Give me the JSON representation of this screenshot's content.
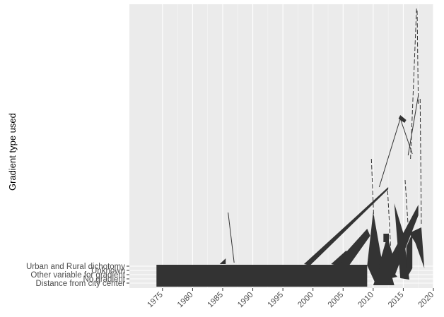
{
  "chart_data": {
    "type": "ribbon",
    "xlabel": "",
    "ylabel": "Gradient type used",
    "xlim": [
      1969.5,
      2020
    ],
    "x_ticks": [
      1975,
      1980,
      1985,
      1990,
      1995,
      2000,
      2005,
      2010,
      2015,
      2020
    ],
    "y_categories": [
      "Distance from city center",
      "No gradient",
      "Other variable for gradient",
      "Unknown",
      "Urban and Rural dichotomy"
    ],
    "grid": true,
    "legend": "none",
    "colors": {
      "panel": "#ebebeb",
      "grid": "#ffffff",
      "fill": "#333333",
      "line": "#333333"
    },
    "main_band": {
      "x_from": 1974,
      "x_to": 2009,
      "category_from": "Distance from city center",
      "category_to": "Urban and Rural dichotomy"
    },
    "dense_cluster": {
      "x_from": 2009,
      "x_to": 2018
    },
    "peak": {
      "x": 2017,
      "y_relative": 1.0
    }
  }
}
